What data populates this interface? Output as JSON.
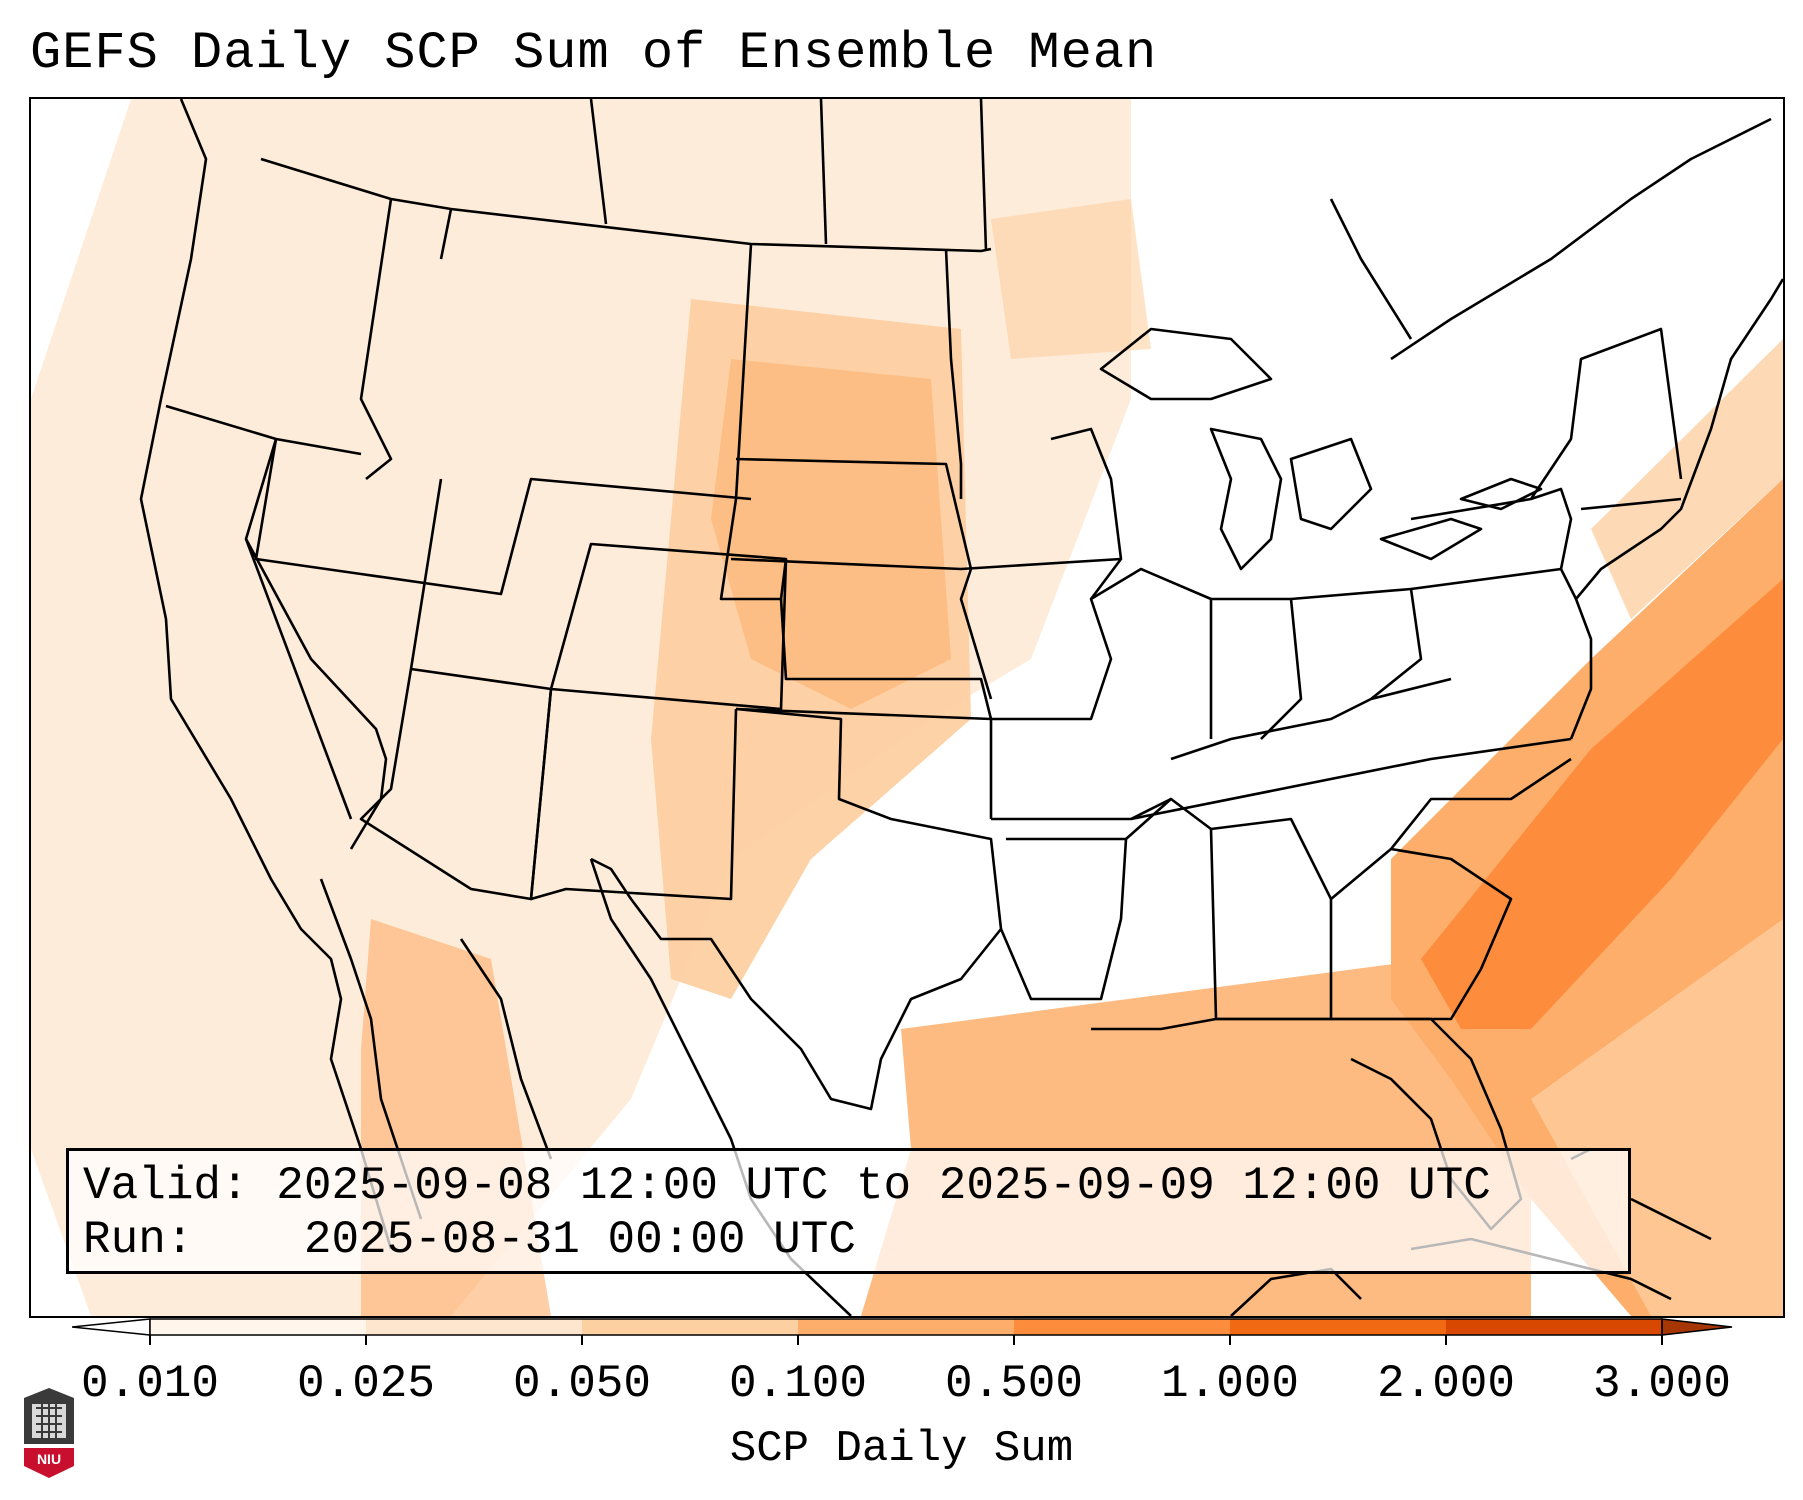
{
  "title": "GEFS Daily SCP Sum of Ensemble Mean",
  "info": {
    "valid_label": "Valid:",
    "valid_value": "2025-09-08 12:00 UTC to 2025-09-09 12:00 UTC",
    "run_label": "Run:",
    "run_value": "2025-08-31 00:00 UTC"
  },
  "colorbar": {
    "label": "SCP Daily Sum",
    "ticks": [
      "0.010",
      "0.025",
      "0.050",
      "0.100",
      "0.500",
      "1.000",
      "2.000",
      "3.000"
    ],
    "colors": [
      "#fff5eb",
      "#fee6ce",
      "#fdd0a2",
      "#fdae6b",
      "#fd8d3c",
      "#f16913",
      "#d94801",
      "#a63603"
    ],
    "extend": "both"
  },
  "logo": {
    "text": "NIU",
    "color": "#c8102e"
  },
  "map": {
    "region": "Contiguous United States",
    "highest_values": "Atlantic off the Southeast coast",
    "elevated_values": [
      "Central Plains",
      "Gulf of Mexico",
      "Mexico"
    ]
  }
}
